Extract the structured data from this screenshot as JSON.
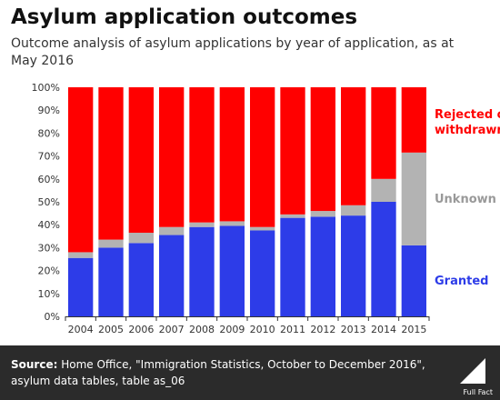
{
  "header": {
    "title": "Asylum application outcomes",
    "subtitle": "Outcome analysis of asylum applications by year of application, as at May 2016"
  },
  "footer": {
    "source_label": "Source:",
    "source_text": "Home Office, \"Immigration Statistics, October to December 2016\", asylum data tables, table as_06",
    "logo_text": "Full Fact"
  },
  "colors": {
    "granted": "#2d3ce8",
    "unknown": "#b3b3b3",
    "rejected": "#ff0000"
  },
  "chart_data": {
    "type": "bar",
    "stacked": true,
    "categories": [
      "2004",
      "2005",
      "2006",
      "2007",
      "2008",
      "2009",
      "2010",
      "2011",
      "2012",
      "2013",
      "2014",
      "2015"
    ],
    "series": [
      {
        "name": "Granted",
        "values": [
          25.5,
          30,
          32,
          35.5,
          39,
          39.5,
          37.5,
          43,
          43.5,
          44,
          50,
          31
        ]
      },
      {
        "name": "Unknown",
        "values": [
          2.5,
          3.5,
          4.5,
          3.5,
          2,
          2,
          1.5,
          1.5,
          2.5,
          4.5,
          10,
          40.5
        ]
      },
      {
        "name": "Rejected or withdrawn",
        "values": [
          72,
          66.5,
          63.5,
          61,
          59,
          58.5,
          61,
          55.5,
          54,
          51.5,
          40,
          28.5
        ]
      }
    ],
    "legend_labels": {
      "rejected": [
        "Rejected or",
        "withdrawn"
      ],
      "unknown": "Unknown",
      "granted": "Granted"
    },
    "y_ticks": [
      "0%",
      "10%",
      "20%",
      "30%",
      "40%",
      "50%",
      "60%",
      "70%",
      "80%",
      "90%",
      "100%"
    ],
    "ylim": [
      0,
      100
    ],
    "grid": false,
    "legend_position": "right"
  }
}
